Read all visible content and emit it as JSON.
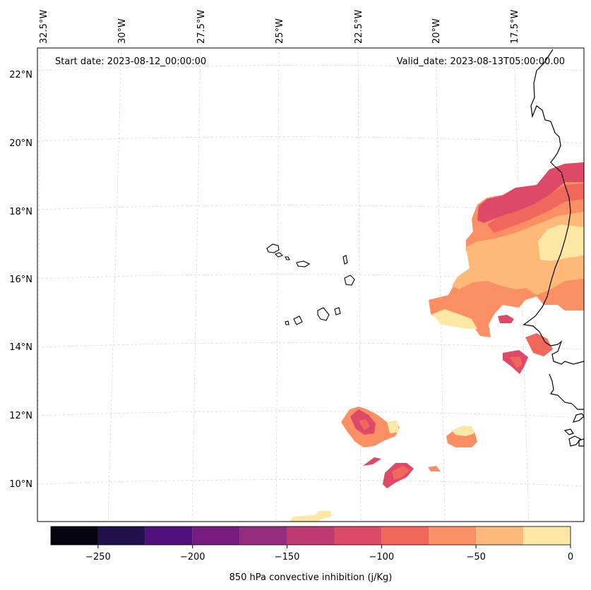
{
  "header": {
    "start_date": "Start date: 2023-08-12_00:00:00",
    "valid_date": "Valid_date: 2023-08-13T05:00:00.00"
  },
  "map": {
    "lon_labels": [
      "32.5°W",
      "30°W",
      "27.5°W",
      "25°W",
      "22.5°W",
      "20°W",
      "17.5°W"
    ],
    "lat_labels": [
      "22°N",
      "20°N",
      "18°N",
      "16°N",
      "14°N",
      "12°N",
      "10°N"
    ],
    "field": "850 hPa convective inhibition",
    "features": [
      "cabo-verde-islands",
      "west-africa-coastline"
    ]
  },
  "colorbar": {
    "label": "850 hPa convective inhibition (j/Kg)",
    "tick_labels": [
      "−250",
      "−200",
      "−150",
      "−100",
      "−50",
      "0"
    ],
    "bins": [
      {
        "range": [
          -275,
          -250
        ],
        "color": "#05040f"
      },
      {
        "range": [
          -250,
          -225
        ],
        "color": "#20114b"
      },
      {
        "range": [
          -225,
          -200
        ],
        "color": "#4e117b"
      },
      {
        "range": [
          -200,
          -175
        ],
        "color": "#761c81"
      },
      {
        "range": [
          -175,
          -150
        ],
        "color": "#952c80"
      },
      {
        "range": [
          -150,
          -125
        ],
        "color": "#bd3a73"
      },
      {
        "range": [
          -125,
          -100
        ],
        "color": "#de4968"
      },
      {
        "range": [
          -100,
          -75
        ],
        "color": "#f2675c"
      },
      {
        "range": [
          -75,
          -50
        ],
        "color": "#fb8f64"
      },
      {
        "range": [
          -50,
          -25
        ],
        "color": "#feb978"
      },
      {
        "range": [
          -25,
          0
        ],
        "color": "#fce7a4"
      }
    ]
  }
}
